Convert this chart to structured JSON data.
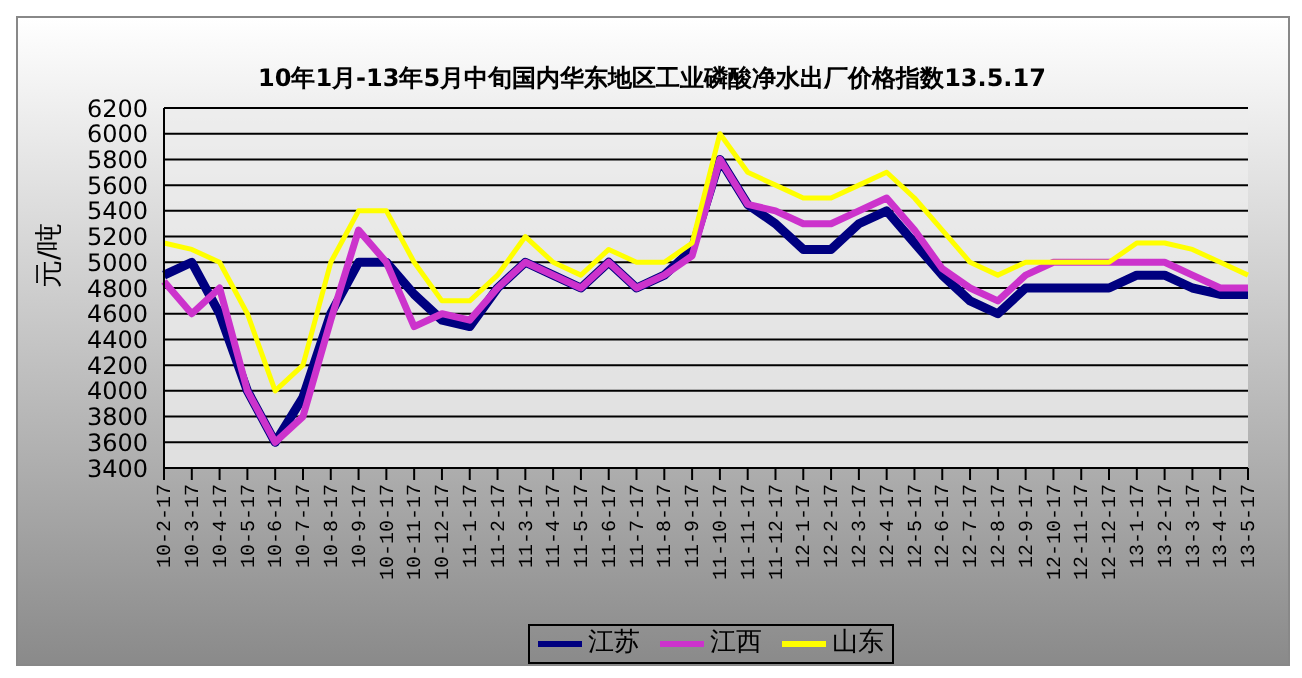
{
  "chart_data": {
    "type": "line",
    "title": "10年1月-13年5月中旬国内华东地区工业磷酸净水出厂价格指数13.5.17",
    "ylabel": "元/吨",
    "categories": [
      "10-2-17",
      "10-3-17",
      "10-4-17",
      "10-5-17",
      "10-6-17",
      "10-7-17",
      "10-8-17",
      "10-9-17",
      "10-10-17",
      "10-11-17",
      "10-12-17",
      "11-1-17",
      "11-2-17",
      "11-3-17",
      "11-4-17",
      "11-5-17",
      "11-6-17",
      "11-7-17",
      "11-8-17",
      "11-9-17",
      "11-10-17",
      "11-11-17",
      "11-12-17",
      "12-1-17",
      "12-2-17",
      "12-3-17",
      "12-4-17",
      "12-5-17",
      "12-6-17",
      "12-7-17",
      "12-8-17",
      "12-9-17",
      "12-10-17",
      "12-11-17",
      "12-12-17",
      "13-1-17",
      "13-2-17",
      "13-3-17",
      "13-4-17",
      "13-5-17"
    ],
    "series": [
      {
        "name": "江苏",
        "color": "#000080",
        "values": [
          4900,
          5000,
          4600,
          4000,
          3600,
          3950,
          4600,
          5000,
          5000,
          4750,
          4550,
          4500,
          4800,
          5000,
          4900,
          4800,
          5000,
          4800,
          4900,
          5100,
          5800,
          5450,
          5300,
          5100,
          5100,
          5300,
          5400,
          5150,
          4900,
          4700,
          4600,
          4800,
          4800,
          4800,
          4800,
          4900,
          4900,
          4800,
          4750,
          4750
        ]
      },
      {
        "name": "江西",
        "color": "#cc33cc",
        "values": [
          4850,
          4600,
          4800,
          4000,
          3600,
          3800,
          4550,
          5250,
          5000,
          4500,
          4600,
          4550,
          4800,
          5000,
          4900,
          4800,
          5000,
          4800,
          4900,
          5050,
          5800,
          5450,
          5400,
          5300,
          5300,
          5400,
          5500,
          5250,
          4950,
          4800,
          4700,
          4900,
          5000,
          5000,
          5000,
          5000,
          5000,
          4900,
          4800,
          4800
        ]
      },
      {
        "name": "山东",
        "color": "#ffff00",
        "values": [
          5150,
          5100,
          5000,
          4600,
          4000,
          4200,
          5000,
          5400,
          5400,
          5000,
          4700,
          4700,
          4900,
          5200,
          5000,
          4900,
          5100,
          5000,
          5000,
          5150,
          6000,
          5700,
          5600,
          5500,
          5500,
          5600,
          5700,
          5500,
          5250,
          5000,
          4900,
          5000,
          5000,
          5000,
          5000,
          5150,
          5150,
          5100,
          5000,
          4900
        ]
      }
    ],
    "ylim": [
      3400,
      6200
    ],
    "yticks": [
      3400,
      3600,
      3800,
      4000,
      4200,
      4400,
      4600,
      4800,
      5000,
      5200,
      5400,
      5600,
      5800,
      6000,
      6200
    ],
    "grid": "y",
    "legend": "bottom",
    "marker": "none",
    "line_style": "solid"
  }
}
